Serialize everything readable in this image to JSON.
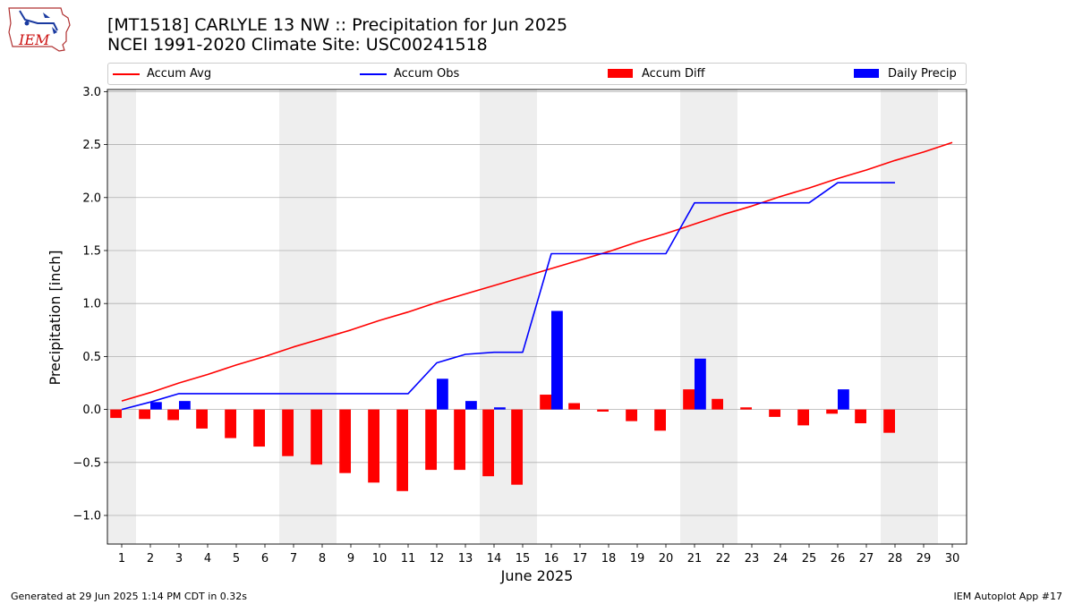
{
  "header": {
    "title_line1": "[MT1518] CARLYLE 13 NW :: Precipitation for Jun 2025",
    "title_line2": "NCEI 1991-2020 Climate Site: USC00241518"
  },
  "logo": {
    "text": "IEM",
    "icon": "iem-logo-icon"
  },
  "footer": {
    "left": "Generated at 29 Jun 2025 1:14 PM CDT in 0.32s",
    "right": "IEM Autoplot App #17"
  },
  "colors": {
    "accum_avg": "#ff0000",
    "accum_obs": "#0000ff",
    "accum_diff": "#ff0000",
    "daily_precip": "#0000ff",
    "weekend_shade": "#eeeeee",
    "grid": "#b0b0b0"
  },
  "chart_data": {
    "type": "bar",
    "xlabel": "June 2025",
    "ylabel": "Precipitation [inch]",
    "xlim": [
      0.5,
      30.5
    ],
    "ylim": [
      -1.27,
      3.02
    ],
    "yticks": [
      -1.0,
      -0.5,
      0.0,
      0.5,
      1.0,
      1.5,
      2.0,
      2.5,
      3.0
    ],
    "ytick_labels": [
      "−1.0",
      "−0.5",
      "0.0",
      "0.5",
      "1.0",
      "1.5",
      "2.0",
      "2.5",
      "3.0"
    ],
    "grid": "horizontal",
    "legend_position": "top",
    "days": [
      1,
      2,
      3,
      4,
      5,
      6,
      7,
      8,
      9,
      10,
      11,
      12,
      13,
      14,
      15,
      16,
      17,
      18,
      19,
      20,
      21,
      22,
      23,
      24,
      25,
      26,
      27,
      28,
      29,
      30
    ],
    "weekend_days": [
      1,
      7,
      8,
      14,
      15,
      21,
      22,
      28,
      29
    ],
    "series": [
      {
        "name": "Accum Avg",
        "kind": "line",
        "x": [
          1,
          2,
          3,
          4,
          5,
          6,
          7,
          8,
          9,
          10,
          11,
          12,
          13,
          14,
          15,
          16,
          17,
          18,
          19,
          20,
          21,
          22,
          23,
          24,
          25,
          26,
          27,
          28,
          29,
          30
        ],
        "values": [
          0.08,
          0.16,
          0.25,
          0.33,
          0.42,
          0.5,
          0.59,
          0.67,
          0.75,
          0.84,
          0.92,
          1.01,
          1.09,
          1.17,
          1.25,
          1.33,
          1.41,
          1.49,
          1.58,
          1.66,
          1.75,
          1.84,
          1.92,
          2.01,
          2.09,
          2.18,
          2.26,
          2.35,
          2.43,
          2.52
        ]
      },
      {
        "name": "Accum Obs",
        "kind": "line",
        "x": [
          1,
          2,
          3,
          4,
          5,
          6,
          7,
          8,
          9,
          10,
          11,
          12,
          13,
          14,
          15,
          16,
          17,
          18,
          19,
          20,
          21,
          22,
          23,
          24,
          25,
          26,
          27,
          28
        ],
        "values": [
          0.0,
          0.07,
          0.15,
          0.15,
          0.15,
          0.15,
          0.15,
          0.15,
          0.15,
          0.15,
          0.15,
          0.44,
          0.52,
          0.54,
          0.54,
          1.47,
          1.47,
          1.47,
          1.47,
          1.47,
          1.95,
          1.95,
          1.95,
          1.95,
          1.95,
          2.14,
          2.14,
          2.14
        ]
      },
      {
        "name": "Accum Diff",
        "kind": "bar",
        "x": [
          1,
          2,
          3,
          4,
          5,
          6,
          7,
          8,
          9,
          10,
          11,
          12,
          13,
          14,
          15,
          16,
          17,
          18,
          19,
          20,
          21,
          22,
          23,
          24,
          25,
          26,
          27,
          28
        ],
        "values": [
          -0.08,
          -0.09,
          -0.1,
          -0.18,
          -0.27,
          -0.35,
          -0.44,
          -0.52,
          -0.6,
          -0.69,
          -0.77,
          -0.57,
          -0.57,
          -0.63,
          -0.71,
          0.14,
          0.06,
          -0.02,
          -0.11,
          -0.2,
          0.19,
          0.1,
          0.02,
          -0.07,
          -0.15,
          -0.04,
          -0.13,
          -0.22
        ]
      },
      {
        "name": "Daily Precip",
        "kind": "bar",
        "x": [
          2,
          3,
          12,
          13,
          14,
          16,
          21,
          26
        ],
        "values": [
          0.07,
          0.08,
          0.29,
          0.08,
          0.02,
          0.93,
          0.48,
          0.19
        ]
      }
    ]
  }
}
